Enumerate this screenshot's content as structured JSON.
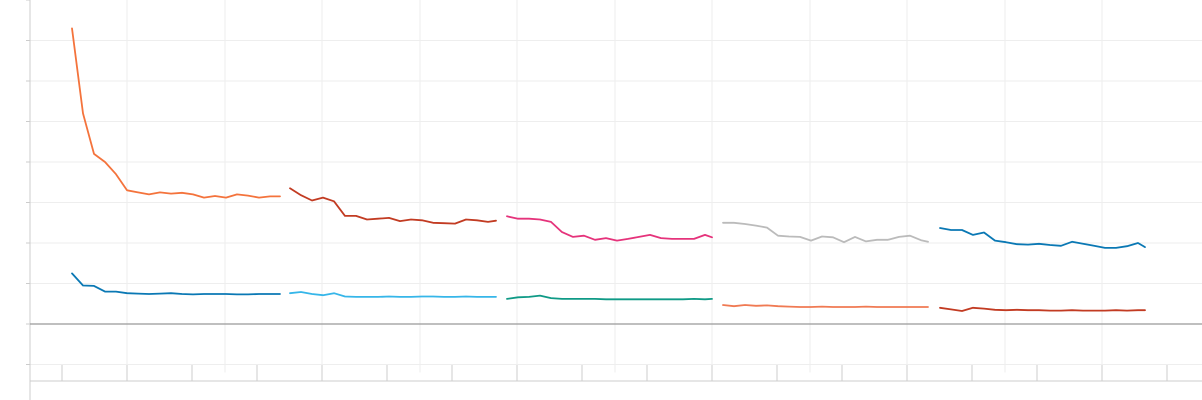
{
  "chart_data": {
    "type": "line",
    "title": "",
    "xlabel": "",
    "ylabel": "",
    "grid": true,
    "legend": "none",
    "ylim": [
      -1.0,
      8.0
    ],
    "xlim": [
      0,
      1170
    ],
    "zero_line": true,
    "x_ticks_minor": [
      62,
      127,
      192,
      257,
      322,
      387,
      452,
      517,
      582,
      647,
      712,
      777,
      842,
      907,
      972,
      1037,
      1102,
      1167
    ],
    "x_grid": [
      30,
      127,
      225,
      322,
      420,
      517,
      615,
      712,
      810,
      907,
      1005,
      1102
    ],
    "y_grid": [
      7.0,
      6.0,
      5.0,
      4.0,
      3.0,
      2.0,
      1.0,
      0.0,
      -1.0
    ],
    "colors": {
      "background": "#ffffff",
      "grid": "#eeeeee",
      "zero_line": "#999999",
      "axis": "#cccccc",
      "orange": "#f4733c",
      "blue": "#0a78b4",
      "dark_red": "#c23b22",
      "light_blue": "#36b6e9",
      "pink": "#e5337b",
      "teal": "#0f9a86",
      "gray": "#bbbbbb",
      "salmon": "#f07a53"
    },
    "series": [
      {
        "color": "orange",
        "x": [
          72,
          83,
          94,
          105,
          116,
          127,
          138,
          149,
          160,
          171,
          182,
          193,
          204,
          215,
          226,
          237,
          248,
          259,
          270,
          280
        ],
        "y": [
          7.3,
          5.2,
          4.2,
          4.0,
          3.7,
          3.3,
          3.25,
          3.2,
          3.25,
          3.22,
          3.24,
          3.2,
          3.12,
          3.16,
          3.12,
          3.2,
          3.17,
          3.12,
          3.15,
          3.15
        ]
      },
      {
        "color": "blue",
        "x": [
          72,
          83,
          94,
          105,
          116,
          127,
          138,
          149,
          160,
          171,
          182,
          193,
          204,
          215,
          226,
          237,
          248,
          259,
          270,
          280
        ],
        "y": [
          1.25,
          0.95,
          0.94,
          0.8,
          0.8,
          0.76,
          0.75,
          0.74,
          0.75,
          0.76,
          0.74,
          0.73,
          0.74,
          0.74,
          0.74,
          0.73,
          0.73,
          0.74,
          0.74,
          0.74
        ]
      },
      {
        "color": "dark_red",
        "x": [
          290,
          301,
          312,
          323,
          334,
          345,
          356,
          367,
          378,
          389,
          400,
          411,
          422,
          433,
          444,
          455,
          466,
          477,
          488,
          496
        ],
        "y": [
          3.35,
          3.18,
          3.05,
          3.12,
          3.03,
          2.67,
          2.67,
          2.58,
          2.6,
          2.62,
          2.54,
          2.58,
          2.56,
          2.5,
          2.49,
          2.48,
          2.58,
          2.56,
          2.52,
          2.55
        ]
      },
      {
        "color": "light_blue",
        "x": [
          290,
          301,
          312,
          323,
          334,
          345,
          356,
          367,
          378,
          389,
          400,
          411,
          422,
          433,
          444,
          455,
          466,
          477,
          488,
          496
        ],
        "y": [
          0.76,
          0.79,
          0.74,
          0.71,
          0.76,
          0.68,
          0.67,
          0.67,
          0.67,
          0.68,
          0.67,
          0.67,
          0.68,
          0.68,
          0.67,
          0.67,
          0.68,
          0.67,
          0.67,
          0.67
        ]
      },
      {
        "color": "pink",
        "x": [
          507,
          518,
          529,
          540,
          551,
          562,
          573,
          584,
          595,
          606,
          617,
          628,
          639,
          650,
          661,
          672,
          683,
          694,
          705,
          712
        ],
        "y": [
          2.66,
          2.6,
          2.6,
          2.58,
          2.52,
          2.27,
          2.15,
          2.18,
          2.08,
          2.12,
          2.06,
          2.1,
          2.15,
          2.2,
          2.12,
          2.1,
          2.1,
          2.1,
          2.2,
          2.14
        ]
      },
      {
        "color": "teal",
        "x": [
          507,
          518,
          529,
          540,
          551,
          562,
          573,
          584,
          595,
          606,
          617,
          628,
          639,
          650,
          661,
          672,
          683,
          694,
          705,
          712
        ],
        "y": [
          0.62,
          0.66,
          0.67,
          0.7,
          0.64,
          0.62,
          0.62,
          0.62,
          0.62,
          0.61,
          0.61,
          0.61,
          0.61,
          0.61,
          0.61,
          0.61,
          0.61,
          0.62,
          0.61,
          0.62
        ]
      },
      {
        "color": "gray",
        "x": [
          723,
          734,
          745,
          756,
          767,
          778,
          789,
          800,
          811,
          822,
          833,
          844,
          855,
          866,
          877,
          888,
          899,
          910,
          921,
          928
        ],
        "y": [
          2.5,
          2.5,
          2.47,
          2.43,
          2.38,
          2.18,
          2.16,
          2.15,
          2.06,
          2.16,
          2.14,
          2.02,
          2.15,
          2.04,
          2.08,
          2.08,
          2.15,
          2.18,
          2.07,
          2.03
        ]
      },
      {
        "color": "salmon",
        "x": [
          723,
          734,
          745,
          756,
          767,
          778,
          789,
          800,
          811,
          822,
          833,
          844,
          855,
          866,
          877,
          888,
          899,
          910,
          921,
          928
        ],
        "y": [
          0.47,
          0.44,
          0.47,
          0.45,
          0.46,
          0.44,
          0.43,
          0.42,
          0.42,
          0.43,
          0.42,
          0.42,
          0.42,
          0.43,
          0.42,
          0.42,
          0.42,
          0.42,
          0.42,
          0.42
        ]
      },
      {
        "color": "blue",
        "x": [
          940,
          951,
          962,
          973,
          984,
          995,
          1006,
          1017,
          1028,
          1039,
          1050,
          1061,
          1072,
          1083,
          1094,
          1105,
          1116,
          1127,
          1138,
          1145
        ],
        "y": [
          2.37,
          2.32,
          2.32,
          2.2,
          2.26,
          2.06,
          2.02,
          1.97,
          1.96,
          1.98,
          1.95,
          1.93,
          2.03,
          1.98,
          1.93,
          1.88,
          1.88,
          1.92,
          2.0,
          1.9
        ]
      },
      {
        "color": "dark_red",
        "x": [
          940,
          951,
          962,
          973,
          984,
          995,
          1006,
          1017,
          1028,
          1039,
          1050,
          1061,
          1072,
          1083,
          1094,
          1105,
          1116,
          1127,
          1138,
          1145
        ],
        "y": [
          0.4,
          0.36,
          0.32,
          0.4,
          0.38,
          0.35,
          0.34,
          0.35,
          0.34,
          0.34,
          0.33,
          0.33,
          0.34,
          0.33,
          0.33,
          0.33,
          0.34,
          0.33,
          0.34,
          0.34
        ]
      }
    ]
  }
}
